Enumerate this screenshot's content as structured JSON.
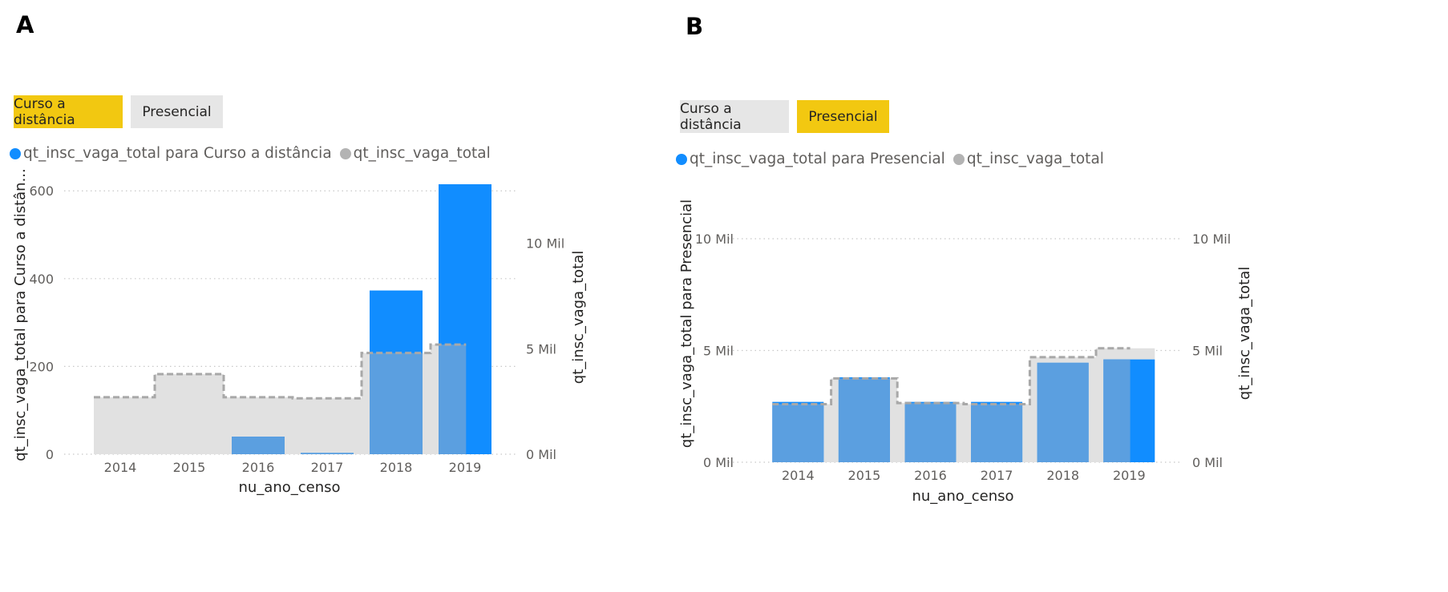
{
  "panels": [
    {
      "letter": "A",
      "slicer": [
        {
          "label": "Curso a distância",
          "active": true
        },
        {
          "label": "Presencial",
          "active": false
        }
      ],
      "legend": [
        {
          "label": "qt_insc_vaga_total para Curso a distância",
          "color": "#118dff"
        },
        {
          "label": "qt_insc_vaga_total",
          "color": "#b3b3b3"
        }
      ],
      "y_left_label": "qt_insc_vaga_total para Curso a distân...",
      "y_right_label": "qt_insc_vaga_total",
      "x_label": "nu_ano_censo",
      "left_ticks": [
        "0",
        "200",
        "400",
        "600"
      ],
      "right_ticks": [
        "0 Mil",
        "5 Mil",
        "10 Mil"
      ]
    },
    {
      "letter": "B",
      "slicer": [
        {
          "label": "Curso a distância",
          "active": false
        },
        {
          "label": "Presencial",
          "active": true
        }
      ],
      "legend": [
        {
          "label": "qt_insc_vaga_total para Presencial",
          "color": "#118dff"
        },
        {
          "label": "qt_insc_vaga_total",
          "color": "#b3b3b3"
        }
      ],
      "y_left_label": "qt_insc_vaga_total para Presencial",
      "y_right_label": "qt_insc_vaga_total",
      "x_label": "nu_ano_censo",
      "left_ticks": [
        "0 Mil",
        "5 Mil",
        "10 Mil"
      ],
      "right_ticks": [
        "0 Mil",
        "5 Mil",
        "10 Mil"
      ]
    }
  ],
  "colors": {
    "series_blue": "#118dff",
    "overlap_blue": "#5b9fe0",
    "total_gray": "#e1e1e1",
    "total_line": "#a8a8a8",
    "slicer_active": "#f2c811",
    "slicer_inactive": "#e6e6e6"
  },
  "chart_data": [
    {
      "type": "bar",
      "categories": [
        "2014",
        "2015",
        "2016",
        "2017",
        "2018",
        "2019"
      ],
      "series": [
        {
          "name": "qt_insc_vaga_total para Curso a distância",
          "axis": "left",
          "values": [
            0,
            0,
            40,
            3,
            373,
            615
          ]
        },
        {
          "name": "qt_insc_vaga_total",
          "axis": "right",
          "style": "area-step",
          "values": [
            2700,
            3800,
            2700,
            2650,
            4800,
            5200
          ]
        }
      ],
      "xlabel": "nu_ano_censo",
      "ylabel": "qt_insc_vaga_total para Curso a distân...",
      "y2label": "qt_insc_vaga_total",
      "ylim": [
        0,
        615
      ],
      "y2lim": [
        0,
        12800
      ],
      "grid": true,
      "legend": "top-left"
    },
    {
      "type": "bar",
      "categories": [
        "2014",
        "2015",
        "2016",
        "2017",
        "2018",
        "2019"
      ],
      "series": [
        {
          "name": "qt_insc_vaga_total para Presencial",
          "axis": "left",
          "values": [
            2700,
            3800,
            2700,
            2700,
            4450,
            4600
          ]
        },
        {
          "name": "qt_insc_vaga_total",
          "axis": "right",
          "style": "area-step",
          "values": [
            2600,
            3750,
            2650,
            2600,
            4700,
            5100
          ]
        }
      ],
      "xlabel": "nu_ano_censo",
      "ylabel": "qt_insc_vaga_total para Presencial",
      "y2label": "qt_insc_vaga_total",
      "ylim": [
        0,
        10000
      ],
      "y2lim": [
        0,
        10000
      ],
      "grid": true,
      "legend": "top-left"
    }
  ]
}
